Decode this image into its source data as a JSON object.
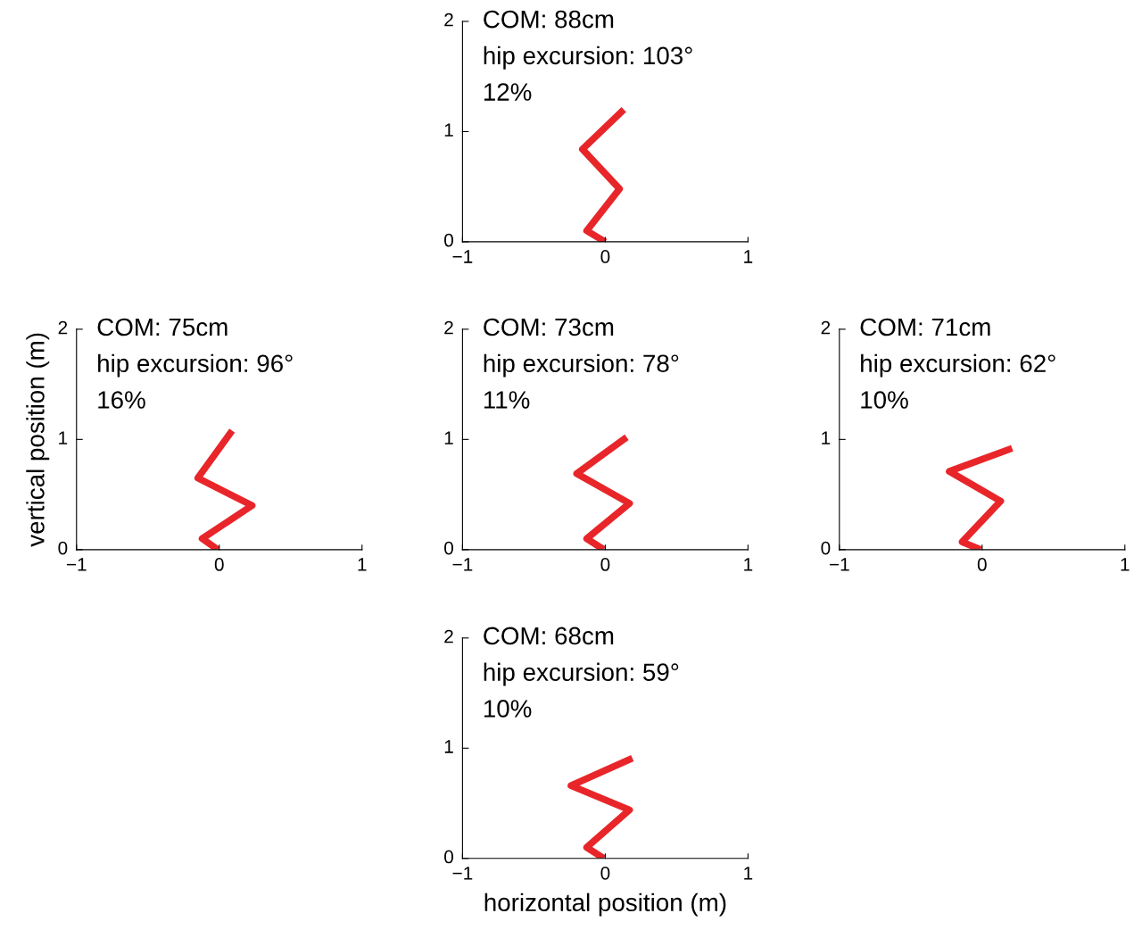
{
  "chart_data": [
    {
      "type": "line",
      "x": [
        0,
        -0.13,
        0.1,
        -0.16,
        0.13
      ],
      "values": [
        0,
        0.1,
        0.48,
        0.84,
        1.2
      ],
      "color": "#e8262a",
      "line_style": "solid",
      "marker": "none",
      "xlim": [
        -1,
        1
      ],
      "xticks": [
        -1,
        0,
        1
      ],
      "ylim": [
        0,
        2
      ],
      "yticks": [
        0,
        1,
        2
      ],
      "annotations": [
        "COM: 88cm",
        "hip excursion: 103°",
        "12%"
      ]
    },
    {
      "type": "line",
      "x": [
        -0.01,
        -0.12,
        0.23,
        -0.15,
        0.09
      ],
      "values": [
        0,
        0.1,
        0.4,
        0.65,
        1.08
      ],
      "color": "#e8262a",
      "line_style": "solid",
      "marker": "none",
      "xlim": [
        -1,
        1
      ],
      "xticks": [
        -1,
        0,
        1
      ],
      "ylim": [
        0,
        2
      ],
      "yticks": [
        0,
        1,
        2
      ],
      "ylabel": "vertical position (m)",
      "annotations": [
        "COM: 75cm",
        "hip excursion: 96°",
        "16%"
      ]
    },
    {
      "type": "line",
      "x": [
        -0.01,
        -0.13,
        0.17,
        -0.2,
        0.15
      ],
      "values": [
        0,
        0.1,
        0.42,
        0.69,
        1.02
      ],
      "color": "#e8262a",
      "line_style": "solid",
      "marker": "none",
      "xlim": [
        -1,
        1
      ],
      "xticks": [
        -1,
        0,
        1
      ],
      "ylim": [
        0,
        2
      ],
      "yticks": [
        0,
        1,
        2
      ],
      "annotations": [
        "COM: 73cm",
        "hip excursion: 78°",
        "11%"
      ]
    },
    {
      "type": "line",
      "x": [
        -0.01,
        -0.14,
        0.13,
        -0.23,
        0.21
      ],
      "values": [
        0,
        0.07,
        0.44,
        0.71,
        0.92
      ],
      "color": "#e8262a",
      "line_style": "solid",
      "marker": "none",
      "xlim": [
        -1,
        1
      ],
      "xticks": [
        -1,
        0,
        1
      ],
      "ylim": [
        0,
        2
      ],
      "yticks": [
        0,
        1,
        2
      ],
      "annotations": [
        "COM: 71cm",
        "hip excursion: 62°",
        "10%"
      ]
    },
    {
      "type": "line",
      "x": [
        -0.01,
        -0.13,
        0.17,
        -0.24,
        0.19
      ],
      "values": [
        0,
        0.1,
        0.44,
        0.66,
        0.91
      ],
      "color": "#e8262a",
      "line_style": "solid",
      "marker": "none",
      "xlim": [
        -1,
        1
      ],
      "xticks": [
        -1,
        0,
        1
      ],
      "ylim": [
        0,
        2
      ],
      "yticks": [
        0,
        1,
        2
      ],
      "xlabel": "horizontal position (m)",
      "annotations": [
        "COM: 68cm",
        "hip excursion: 59°",
        "10%"
      ]
    }
  ]
}
